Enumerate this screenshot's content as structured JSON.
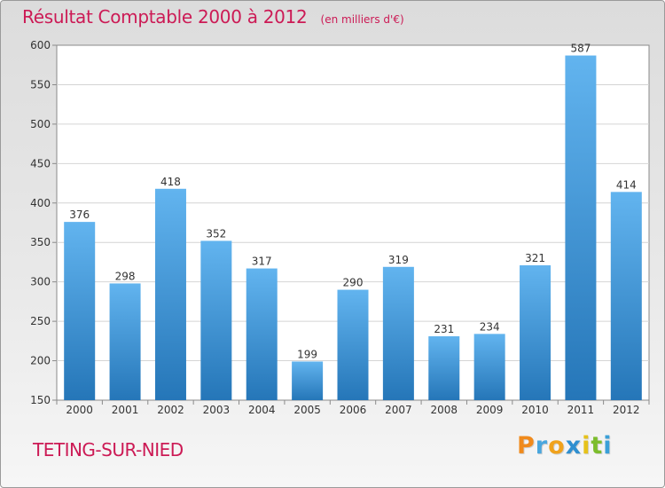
{
  "header": {
    "title": "Résultat Comptable 2000 à 2012",
    "subtitle": "(en milliers d'€)"
  },
  "footer": {
    "commune": "TETING-SUR-NIED",
    "logo": "Proxiti"
  },
  "colors": {
    "accent": "#cc1a55",
    "bar_top": "#62b4ef",
    "bar_bottom": "#2576b8"
  },
  "chart_data": {
    "type": "bar",
    "title": "Résultat Comptable 2000 à 2012",
    "subtitle": "(en milliers d'€)",
    "xlabel": "",
    "ylabel": "",
    "categories": [
      "2000",
      "2001",
      "2002",
      "2003",
      "2004",
      "2005",
      "2006",
      "2007",
      "2008",
      "2009",
      "2010",
      "2011",
      "2012"
    ],
    "values": [
      376,
      298,
      418,
      352,
      317,
      199,
      290,
      319,
      231,
      234,
      321,
      587,
      414
    ],
    "ylim": [
      150,
      600
    ],
    "yticks": [
      150,
      200,
      250,
      300,
      350,
      400,
      450,
      500,
      550,
      600
    ],
    "grid": "horizontal",
    "data_labels": true
  }
}
